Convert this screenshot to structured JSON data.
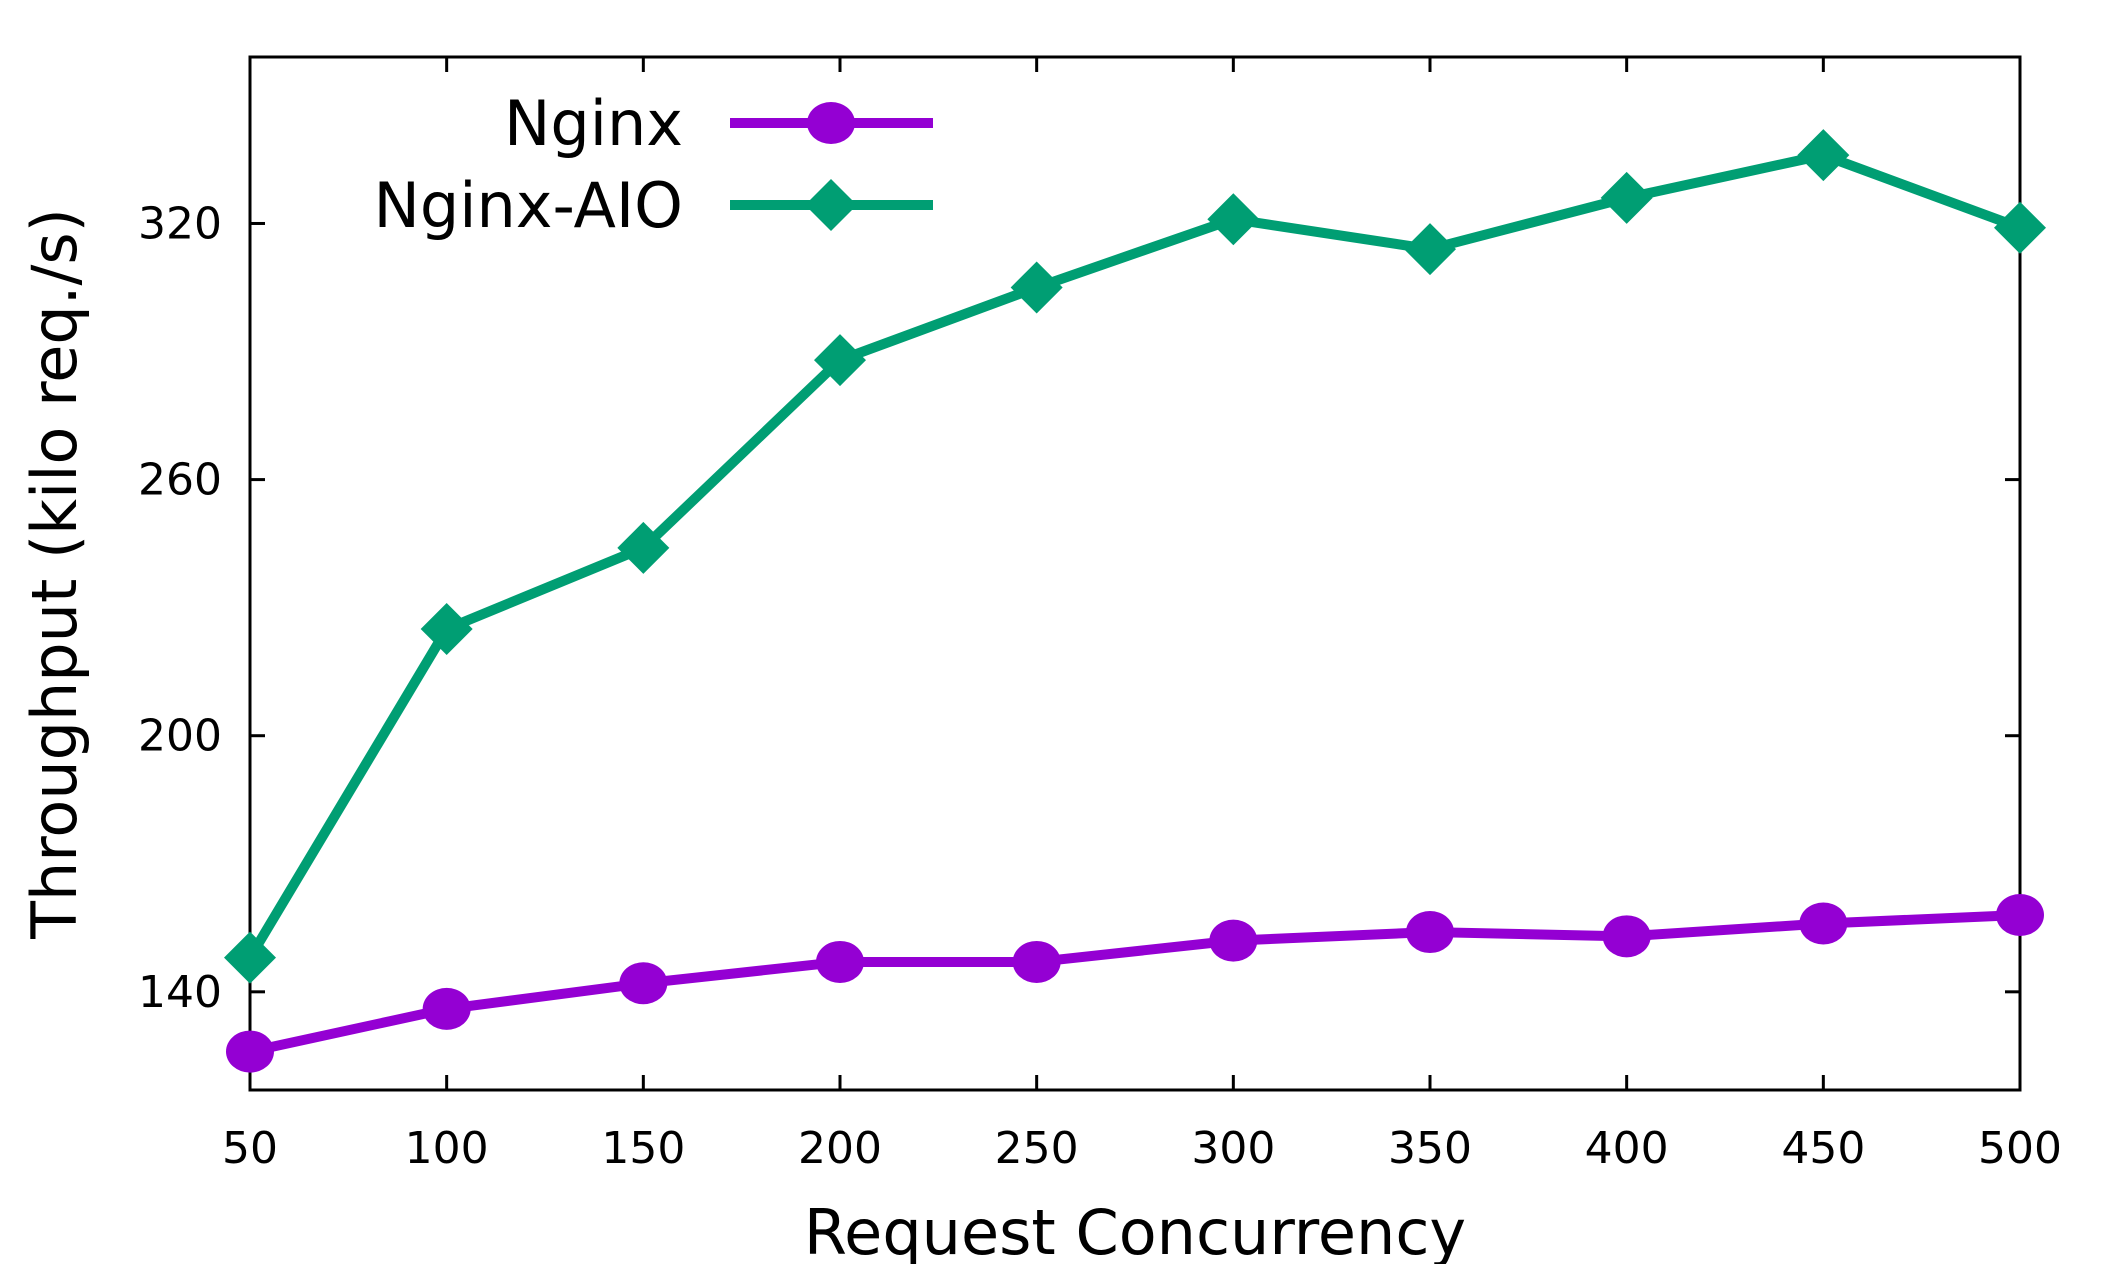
{
  "chart_data": {
    "type": "line",
    "title": "",
    "xlabel": "Request Concurrency",
    "ylabel": "Throughput (kilo req./s)",
    "x": [
      50,
      100,
      150,
      200,
      250,
      300,
      350,
      400,
      450,
      500
    ],
    "xticks": [
      "50",
      "100",
      "150",
      "200",
      "250",
      "300",
      "350",
      "400",
      "450",
      "500"
    ],
    "yticks": [
      140,
      200,
      260,
      320
    ],
    "xlim": [
      50,
      500
    ],
    "ylim": [
      117,
      359
    ],
    "grid": false,
    "legend_position": "top-left",
    "series": [
      {
        "name": "Nginx",
        "color": "#9400d3",
        "marker": "circle",
        "values": [
          126,
          136,
          142,
          147,
          147,
          152,
          154,
          153,
          156,
          158
        ]
      },
      {
        "name": "Nginx-AIO",
        "color": "#009e73",
        "marker": "diamond",
        "values": [
          148,
          225,
          244,
          288,
          305,
          321,
          314,
          326,
          336,
          319
        ]
      }
    ]
  }
}
